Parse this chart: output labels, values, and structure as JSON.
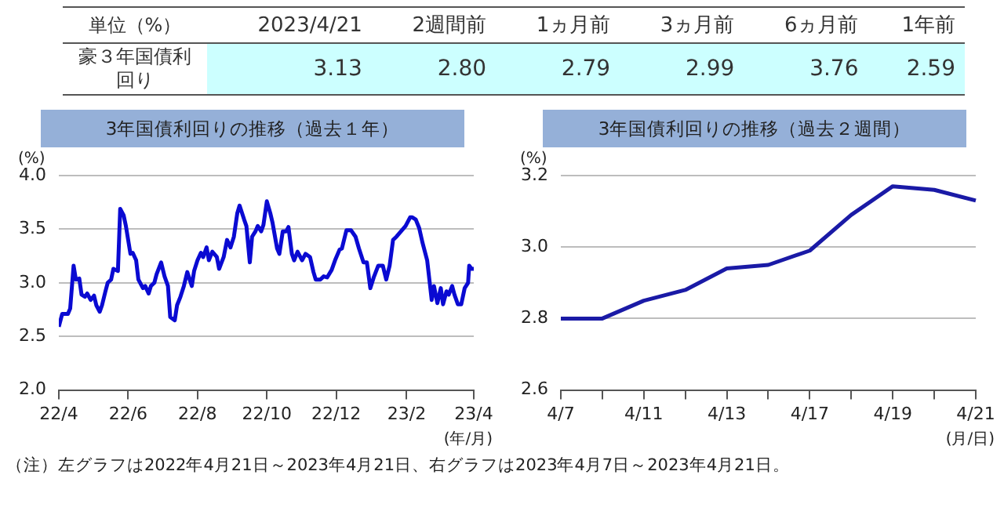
{
  "chart_data": [
    {
      "type": "other",
      "title": "単位（%）",
      "ylabel": "豪３年国債利回り",
      "categories": [
        "2023/4/21",
        "2週間前",
        "1ヵ月前",
        "3ヵ月前",
        "6ヵ月前",
        "1年前"
      ],
      "values": [
        3.13,
        2.8,
        2.79,
        2.99,
        3.76,
        2.59
      ],
      "value_labels": [
        "3.13",
        "2.80",
        "2.79",
        "2.99",
        "3.76",
        "2.59"
      ],
      "data_labels": true
    },
    {
      "type": "line",
      "title": "3年国債利回りの推移（過去１年）",
      "ylabel": "(%)",
      "xlabel": "(年/月)",
      "grid": "y",
      "legend": false,
      "marker": "none",
      "x": [
        "2022-04-21",
        "2022-04-24",
        "2022-04-29",
        "2022-05-01",
        "2022-05-04",
        "2022-05-06",
        "2022-05-09",
        "2022-05-11",
        "2022-05-14",
        "2022-05-16",
        "2022-05-19",
        "2022-05-22",
        "2022-05-24",
        "2022-05-27",
        "2022-05-29",
        "2022-06-01",
        "2022-06-03",
        "2022-06-06",
        "2022-06-08",
        "2022-06-12",
        "2022-06-14",
        "2022-06-17",
        "2022-06-19",
        "2022-06-23",
        "2022-06-25",
        "2022-06-28",
        "2022-06-30",
        "2022-07-04",
        "2022-07-06",
        "2022-07-09",
        "2022-07-11",
        "2022-07-14",
        "2022-07-16",
        "2022-07-20",
        "2022-07-23",
        "2022-07-26",
        "2022-07-28",
        "2022-08-01",
        "2022-08-03",
        "2022-08-06",
        "2022-08-09",
        "2022-08-12",
        "2022-08-16",
        "2022-08-18",
        "2022-08-21",
        "2022-08-24",
        "2022-08-26",
        "2022-08-29",
        "2022-08-31",
        "2022-09-03",
        "2022-09-07",
        "2022-09-09",
        "2022-09-13",
        "2022-09-16",
        "2022-09-19",
        "2022-09-22",
        "2022-09-25",
        "2022-09-27",
        "2022-10-01",
        "2022-10-03",
        "2022-10-06",
        "2022-10-08",
        "2022-10-11",
        "2022-10-13",
        "2022-10-16",
        "2022-10-18",
        "2022-10-21",
        "2022-10-24",
        "2022-10-26",
        "2022-10-30",
        "2022-11-01",
        "2022-11-04",
        "2022-11-07",
        "2022-11-09",
        "2022-11-12",
        "2022-11-14",
        "2022-11-17",
        "2022-11-21",
        "2022-11-24",
        "2022-11-28",
        "2022-12-01",
        "2022-12-03",
        "2022-12-07",
        "2022-12-10",
        "2022-12-13",
        "2022-12-17",
        "2022-12-20",
        "2022-12-24",
        "2022-12-26",
        "2022-12-30",
        "2023-01-03",
        "2023-01-07",
        "2023-01-10",
        "2023-01-14",
        "2023-01-17",
        "2023-01-20",
        "2023-01-23",
        "2023-01-27",
        "2023-01-31",
        "2023-02-03",
        "2023-02-06",
        "2023-02-09",
        "2023-02-12",
        "2023-02-16",
        "2023-02-20",
        "2023-02-24",
        "2023-02-26",
        "2023-03-01",
        "2023-03-04",
        "2023-03-07",
        "2023-03-11",
        "2023-03-15",
        "2023-03-17",
        "2023-03-20",
        "2023-03-23",
        "2023-03-25",
        "2023-03-28",
        "2023-03-30",
        "2023-04-02",
        "2023-04-04",
        "2023-04-07",
        "2023-04-10",
        "2023-04-13",
        "2023-04-16",
        "2023-04-17",
        "2023-04-19",
        "2023-04-21"
      ],
      "series": [
        {
          "color": "#0a0ad2",
          "values": [
            2.59,
            2.71,
            2.71,
            2.76,
            3.16,
            3.03,
            3.04,
            2.89,
            2.87,
            2.9,
            2.84,
            2.88,
            2.79,
            2.73,
            2.79,
            2.92,
            3.0,
            3.03,
            3.13,
            3.11,
            3.69,
            3.63,
            3.53,
            3.27,
            3.28,
            3.21,
            3.03,
            2.95,
            2.97,
            2.9,
            2.97,
            3.0,
            3.08,
            3.19,
            3.06,
            2.97,
            2.68,
            2.65,
            2.79,
            2.87,
            2.97,
            3.1,
            2.97,
            3.11,
            3.21,
            3.28,
            3.24,
            3.33,
            3.21,
            3.29,
            3.24,
            3.13,
            3.24,
            3.4,
            3.33,
            3.43,
            3.65,
            3.72,
            3.59,
            3.53,
            3.19,
            3.43,
            3.48,
            3.53,
            3.48,
            3.54,
            3.76,
            3.65,
            3.56,
            3.32,
            3.27,
            3.48,
            3.48,
            3.52,
            3.27,
            3.21,
            3.29,
            3.21,
            3.27,
            3.24,
            3.1,
            3.03,
            3.03,
            3.06,
            3.05,
            3.12,
            3.21,
            3.31,
            3.32,
            3.49,
            3.49,
            3.43,
            3.32,
            3.19,
            3.19,
            2.95,
            3.05,
            3.16,
            3.16,
            3.03,
            3.16,
            3.4,
            3.43,
            3.48,
            3.53,
            3.61,
            3.61,
            3.59,
            3.51,
            3.37,
            3.21,
            2.84,
            2.97,
            2.81,
            2.95,
            2.8,
            2.92,
            2.89,
            2.97,
            2.89,
            2.8,
            2.8,
            2.95,
            3.0,
            3.16,
            3.13,
            3.13
          ]
        }
      ],
      "xlim": [
        "2022-04-21",
        "2023-04-21"
      ],
      "xticks": [
        {
          "value": "2022-04-21",
          "label": "22/4"
        },
        {
          "value": "2022-06-21",
          "label": "22/6"
        },
        {
          "value": "2022-08-21",
          "label": "22/8"
        },
        {
          "value": "2022-10-21",
          "label": "22/10"
        },
        {
          "value": "2022-12-21",
          "label": "22/12"
        },
        {
          "value": "2023-02-21",
          "label": "23/2"
        },
        {
          "value": "2023-04-21",
          "label": "23/4"
        }
      ],
      "ylim": [
        2,
        4
      ],
      "yticks": [
        {
          "value": 2,
          "label": "2.0"
        },
        {
          "value": 2.5,
          "label": "2.5"
        },
        {
          "value": 3,
          "label": "3.0"
        },
        {
          "value": 3.5,
          "label": "3.5"
        },
        {
          "value": 4,
          "label": "4.0"
        }
      ]
    },
    {
      "type": "line",
      "title": "3年国債利回りの推移（過去２週間）",
      "ylabel": "(%)",
      "xlabel": "(月/日)",
      "grid": "y",
      "legend": false,
      "marker": "none",
      "categories": [
        "4/7",
        null,
        "4/11",
        null,
        "4/13",
        null,
        "4/17",
        null,
        "4/19",
        null,
        "4/21"
      ],
      "series": [
        {
          "color": "#1a1aa6",
          "values": [
            2.8,
            2.8,
            2.85,
            2.88,
            2.94,
            2.95,
            2.99,
            3.09,
            3.17,
            3.16,
            3.13
          ]
        }
      ],
      "ylim": [
        2.6,
        3.2
      ],
      "yticks": [
        {
          "value": 2.6,
          "label": "2.6"
        },
        {
          "value": 2.8,
          "label": "2.8"
        },
        {
          "value": 3,
          "label": "3.0"
        },
        {
          "value": 3.2,
          "label": "3.2"
        }
      ],
      "annotations": [
        "（注）左グラフは2022年4月21日～2023年4月21日、右グラフは2023年4月7日～2023年4月21日。"
      ]
    }
  ]
}
